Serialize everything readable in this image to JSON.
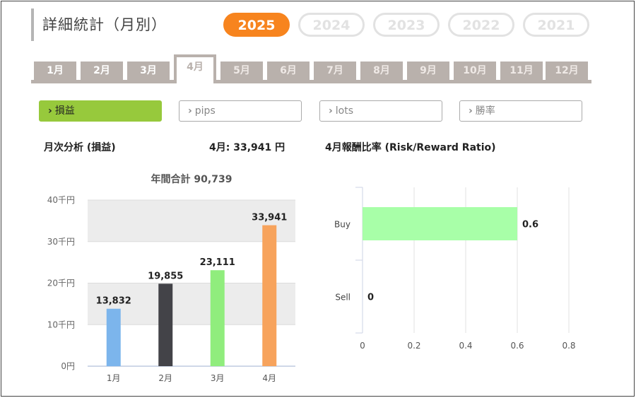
{
  "header": {
    "title": "詳細統計（月別）"
  },
  "years": [
    "2025",
    "2024",
    "2023",
    "2022",
    "2021"
  ],
  "active_year": "2025",
  "months": [
    "1月",
    "2月",
    "3月",
    "4月",
    "5月",
    "6月",
    "7月",
    "8月",
    "9月",
    "10月",
    "11月",
    "12月"
  ],
  "active_month": "4月",
  "filters": [
    {
      "label": "損益",
      "active": true
    },
    {
      "label": "pips",
      "active": false
    },
    {
      "label": "lots",
      "active": false
    },
    {
      "label": "勝率",
      "active": false
    }
  ],
  "summary": {
    "section_label": "月次分析 (損益)",
    "month_prefix": "4月:",
    "month_value": "33,941",
    "month_unit": "円",
    "ratio_title": "4月報酬比率 (Risk/Reward Ratio)"
  },
  "colors": {
    "accent": "#f7841e",
    "filter_active": "#97c93c",
    "tab": "#b9b1ac"
  },
  "chart_data": [
    {
      "type": "bar",
      "title": "年間合計 90,739",
      "categories": [
        "1月",
        "2月",
        "3月",
        "4月"
      ],
      "values": [
        13832,
        19855,
        23111,
        33941
      ],
      "value_labels": [
        "13,832",
        "19,855",
        "23,111",
        "33,941"
      ],
      "bar_colors": [
        "#7cb5ec",
        "#434348",
        "#90ed7d",
        "#f7a35c"
      ],
      "ylim": [
        0,
        40000
      ],
      "yticks": [
        0,
        10000,
        20000,
        30000,
        40000
      ],
      "ytick_labels": [
        "0円",
        "10千円",
        "20千円",
        "30千円",
        "40千円"
      ],
      "grid": "alternating bands"
    },
    {
      "type": "bar",
      "orientation": "horizontal",
      "categories": [
        "Buy",
        "Sell"
      ],
      "values": [
        0.6,
        0
      ],
      "value_labels": [
        "0.6",
        "0"
      ],
      "bar_color": "#a8ffa8",
      "xlim": [
        0,
        0.8
      ],
      "xticks": [
        0,
        0.2,
        0.4,
        0.6,
        0.8
      ],
      "xtick_labels": [
        "0",
        "0.2",
        "0.4",
        "0.6",
        "0.8"
      ]
    }
  ]
}
